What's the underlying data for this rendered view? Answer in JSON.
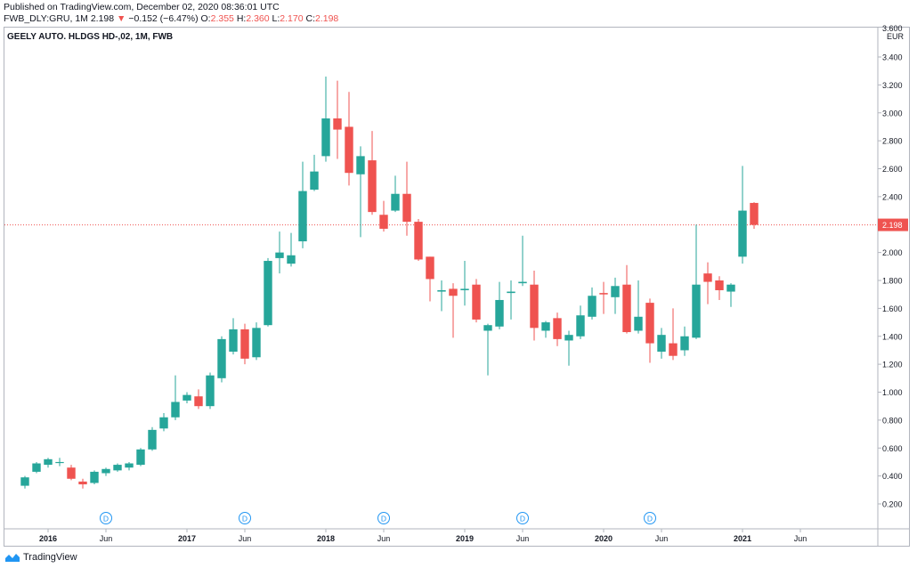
{
  "header": {
    "published": "Published on TradingView.com, December 02, 2020 08:36:01 UTC",
    "symbol": "FWB_DLY:GRU, 1M",
    "last": "2.198",
    "arrow": "▼",
    "change": "−0.152 (−6.47%)",
    "o_label": "O:",
    "o_val": "2.355",
    "h_label": "H:",
    "h_val": "2.360",
    "l_label": "L:",
    "l_val": "2.170",
    "c_label": "C:",
    "c_val": "2.198"
  },
  "series_title": "GEELY AUTO. HLDGS HD-,02, 1M, FWB",
  "currency": "EUR",
  "footer": {
    "brand": "TradingView"
  },
  "colors": {
    "up": "#26a69a",
    "down": "#ef5350",
    "price_line": "#ef5350",
    "dividend": "#2196f3"
  },
  "chart_data": {
    "type": "candlestick",
    "title": "GEELY AUTO. HLDGS HD-,02, 1M, FWB",
    "ylim": [
      0.05,
      3.45
    ],
    "y_ticks": [
      "0.200",
      "0.400",
      "0.600",
      "0.800",
      "1.000",
      "1.200",
      "1.400",
      "1.600",
      "1.800",
      "2.000",
      "2.200",
      "2.400",
      "2.600",
      "2.800",
      "3.000",
      "3.200",
      "3.400"
    ],
    "y_top_partial": "3.600",
    "x_ticks": [
      "2016",
      "Jun",
      "2017",
      "Jun",
      "2018",
      "Jun",
      "2019",
      "Jun",
      "2020",
      "Jun",
      "2021",
      "Jun"
    ],
    "last_price": 2.198,
    "last_price_label": "2.198",
    "dividend_marker": "D",
    "dividend_months": [
      "2016-06",
      "2017-06",
      "2018-06",
      "2019-06",
      "2020-05"
    ],
    "candles": [
      {
        "t": "2015-11",
        "o": 0.33,
        "h": 0.4,
        "l": 0.31,
        "c": 0.39
      },
      {
        "t": "2015-12",
        "o": 0.43,
        "h": 0.5,
        "l": 0.42,
        "c": 0.49
      },
      {
        "t": "2016-01",
        "o": 0.48,
        "h": 0.53,
        "l": 0.46,
        "c": 0.52
      },
      {
        "t": "2016-02",
        "o": 0.5,
        "h": 0.53,
        "l": 0.47,
        "c": 0.5
      },
      {
        "t": "2016-03",
        "o": 0.46,
        "h": 0.48,
        "l": 0.37,
        "c": 0.38
      },
      {
        "t": "2016-04",
        "o": 0.36,
        "h": 0.38,
        "l": 0.31,
        "c": 0.34
      },
      {
        "t": "2016-05",
        "o": 0.35,
        "h": 0.44,
        "l": 0.34,
        "c": 0.43
      },
      {
        "t": "2016-06",
        "o": 0.42,
        "h": 0.46,
        "l": 0.4,
        "c": 0.45
      },
      {
        "t": "2016-07",
        "o": 0.44,
        "h": 0.49,
        "l": 0.43,
        "c": 0.48
      },
      {
        "t": "2016-08",
        "o": 0.46,
        "h": 0.5,
        "l": 0.44,
        "c": 0.49
      },
      {
        "t": "2016-09",
        "o": 0.48,
        "h": 0.6,
        "l": 0.47,
        "c": 0.59
      },
      {
        "t": "2016-10",
        "o": 0.59,
        "h": 0.75,
        "l": 0.58,
        "c": 0.73
      },
      {
        "t": "2016-11",
        "o": 0.74,
        "h": 0.85,
        "l": 0.72,
        "c": 0.82
      },
      {
        "t": "2016-12",
        "o": 0.82,
        "h": 1.12,
        "l": 0.8,
        "c": 0.93
      },
      {
        "t": "2017-01",
        "o": 0.94,
        "h": 1.0,
        "l": 0.92,
        "c": 0.98
      },
      {
        "t": "2017-02",
        "o": 0.97,
        "h": 1.02,
        "l": 0.88,
        "c": 0.9
      },
      {
        "t": "2017-03",
        "o": 0.9,
        "h": 1.14,
        "l": 0.88,
        "c": 1.12
      },
      {
        "t": "2017-04",
        "o": 1.1,
        "h": 1.4,
        "l": 1.07,
        "c": 1.38
      },
      {
        "t": "2017-05",
        "o": 1.29,
        "h": 1.53,
        "l": 1.27,
        "c": 1.45
      },
      {
        "t": "2017-06",
        "o": 1.45,
        "h": 1.49,
        "l": 1.2,
        "c": 1.24
      },
      {
        "t": "2017-07",
        "o": 1.25,
        "h": 1.5,
        "l": 1.23,
        "c": 1.46
      },
      {
        "t": "2017-08",
        "o": 1.48,
        "h": 1.96,
        "l": 1.47,
        "c": 1.94
      },
      {
        "t": "2017-09",
        "o": 1.96,
        "h": 2.15,
        "l": 1.85,
        "c": 2.0
      },
      {
        "t": "2017-10",
        "o": 1.92,
        "h": 2.14,
        "l": 1.9,
        "c": 1.98
      },
      {
        "t": "2017-11",
        "o": 2.08,
        "h": 2.65,
        "l": 2.03,
        "c": 2.44
      },
      {
        "t": "2017-12",
        "o": 2.45,
        "h": 2.7,
        "l": 2.44,
        "c": 2.58
      },
      {
        "t": "2018-01",
        "o": 2.69,
        "h": 3.26,
        "l": 2.65,
        "c": 2.96
      },
      {
        "t": "2018-02",
        "o": 2.96,
        "h": 3.23,
        "l": 2.67,
        "c": 2.88
      },
      {
        "t": "2018-03",
        "o": 2.9,
        "h": 3.15,
        "l": 2.48,
        "c": 2.57
      },
      {
        "t": "2018-04",
        "o": 2.56,
        "h": 2.76,
        "l": 2.11,
        "c": 2.69
      },
      {
        "t": "2018-05",
        "o": 2.66,
        "h": 2.87,
        "l": 2.27,
        "c": 2.29
      },
      {
        "t": "2018-06",
        "o": 2.27,
        "h": 2.37,
        "l": 2.15,
        "c": 2.17
      },
      {
        "t": "2018-07",
        "o": 2.3,
        "h": 2.55,
        "l": 2.29,
        "c": 2.42
      },
      {
        "t": "2018-08",
        "o": 2.42,
        "h": 2.65,
        "l": 2.12,
        "c": 2.22
      },
      {
        "t": "2018-09",
        "o": 2.22,
        "h": 2.24,
        "l": 1.94,
        "c": 1.95
      },
      {
        "t": "2018-10",
        "o": 1.97,
        "h": 1.97,
        "l": 1.65,
        "c": 1.81
      },
      {
        "t": "2018-11",
        "o": 1.72,
        "h": 1.8,
        "l": 1.58,
        "c": 1.73
      },
      {
        "t": "2018-12",
        "o": 1.74,
        "h": 1.78,
        "l": 1.39,
        "c": 1.69
      },
      {
        "t": "2019-01",
        "o": 1.73,
        "h": 1.94,
        "l": 1.62,
        "c": 1.74
      },
      {
        "t": "2019-02",
        "o": 1.77,
        "h": 1.81,
        "l": 1.5,
        "c": 1.52
      },
      {
        "t": "2019-03",
        "o": 1.44,
        "h": 1.49,
        "l": 1.12,
        "c": 1.48
      },
      {
        "t": "2019-04",
        "o": 1.47,
        "h": 1.79,
        "l": 1.45,
        "c": 1.66
      },
      {
        "t": "2019-05",
        "o": 1.71,
        "h": 1.8,
        "l": 1.52,
        "c": 1.72
      },
      {
        "t": "2019-06",
        "o": 1.78,
        "h": 2.12,
        "l": 1.76,
        "c": 1.79
      },
      {
        "t": "2019-07",
        "o": 1.77,
        "h": 1.87,
        "l": 1.37,
        "c": 1.46
      },
      {
        "t": "2019-08",
        "o": 1.44,
        "h": 1.51,
        "l": 1.39,
        "c": 1.5
      },
      {
        "t": "2019-09",
        "o": 1.53,
        "h": 1.57,
        "l": 1.33,
        "c": 1.38
      },
      {
        "t": "2019-10",
        "o": 1.37,
        "h": 1.44,
        "l": 1.19,
        "c": 1.41
      },
      {
        "t": "2019-11",
        "o": 1.4,
        "h": 1.62,
        "l": 1.38,
        "c": 1.55
      },
      {
        "t": "2019-12",
        "o": 1.54,
        "h": 1.75,
        "l": 1.52,
        "c": 1.69
      },
      {
        "t": "2020-01",
        "o": 1.71,
        "h": 1.79,
        "l": 1.56,
        "c": 1.7
      },
      {
        "t": "2020-02",
        "o": 1.68,
        "h": 1.82,
        "l": 1.56,
        "c": 1.76
      },
      {
        "t": "2020-03",
        "o": 1.77,
        "h": 1.91,
        "l": 1.42,
        "c": 1.43
      },
      {
        "t": "2020-04",
        "o": 1.44,
        "h": 1.8,
        "l": 1.42,
        "c": 1.54
      },
      {
        "t": "2020-05",
        "o": 1.64,
        "h": 1.67,
        "l": 1.21,
        "c": 1.35
      },
      {
        "t": "2020-06",
        "o": 1.29,
        "h": 1.46,
        "l": 1.24,
        "c": 1.41
      },
      {
        "t": "2020-07",
        "o": 1.35,
        "h": 1.6,
        "l": 1.23,
        "c": 1.26
      },
      {
        "t": "2020-08",
        "o": 1.3,
        "h": 1.47,
        "l": 1.26,
        "c": 1.4
      },
      {
        "t": "2020-09",
        "o": 1.39,
        "h": 2.2,
        "l": 1.38,
        "c": 1.77
      },
      {
        "t": "2020-10",
        "o": 1.85,
        "h": 1.93,
        "l": 1.63,
        "c": 1.79
      },
      {
        "t": "2020-11",
        "o": 1.8,
        "h": 1.83,
        "l": 1.66,
        "c": 1.73
      },
      {
        "t": "2020-12",
        "o": 1.72,
        "h": 1.78,
        "l": 1.61,
        "c": 1.77
      },
      {
        "t": "2021-01",
        "o": 1.97,
        "h": 2.62,
        "l": 1.92,
        "c": 2.3
      },
      {
        "t": "2021-02",
        "o": 2.355,
        "h": 2.36,
        "l": 2.17,
        "c": 2.198
      }
    ]
  }
}
